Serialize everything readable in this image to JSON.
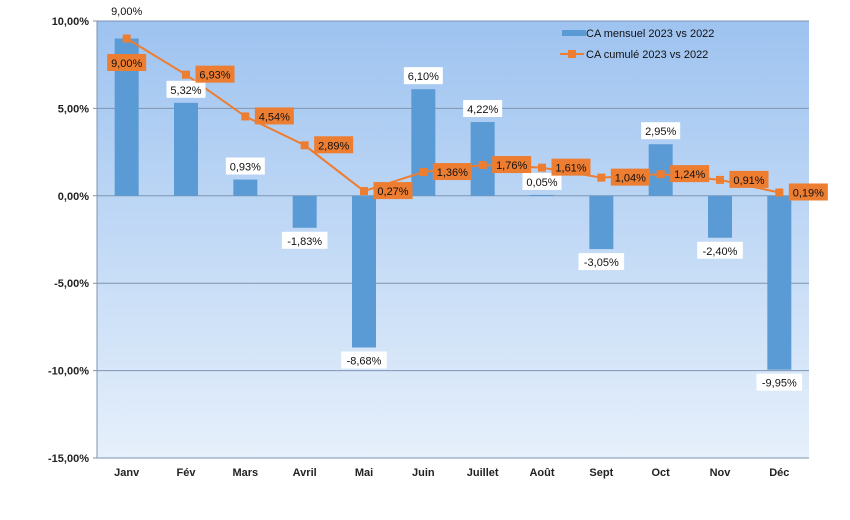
{
  "chart_data": {
    "type": "bar+line",
    "categories": [
      "Janv",
      "Fév",
      "Mars",
      "Avril",
      "Mai",
      "Juin",
      "Juillet",
      "Août",
      "Sept",
      "Oct",
      "Nov",
      "Déc"
    ],
    "series": [
      {
        "name": "CA mensuel 2023 vs 2022",
        "type": "bar",
        "color": "#5b9bd5",
        "values": [
          9.0,
          5.32,
          0.93,
          -1.83,
          -8.68,
          6.1,
          4.22,
          0.05,
          -3.05,
          2.95,
          -2.4,
          -9.95
        ],
        "labels": [
          "9,00%",
          "5,32%",
          "0,93%",
          "-1,83%",
          "-8,68%",
          "6,10%",
          "4,22%",
          "0,05%",
          "-3,05%",
          "2,95%",
          "-2,40%",
          "-9,95%"
        ]
      },
      {
        "name": "CA cumulé 2023 vs 2022",
        "type": "line",
        "color": "#ed7d31",
        "values": [
          9.0,
          6.93,
          4.54,
          2.89,
          0.27,
          1.36,
          1.76,
          1.61,
          1.04,
          1.24,
          0.91,
          0.19
        ],
        "labels": [
          "9,00%",
          "6,93%",
          "4,54%",
          "2,89%",
          "0,27%",
          "1,36%",
          "1,76%",
          "1,61%",
          "1,04%",
          "1,24%",
          "0,91%",
          "0,19%"
        ]
      }
    ],
    "ylim": [
      -15,
      10
    ],
    "yticks": [
      10,
      5,
      0,
      -5,
      -10,
      -15
    ],
    "ytick_labels": [
      "10,00%",
      "5,00%",
      "0,00%",
      "-5,00%",
      "-10,00%",
      "-15,00%"
    ],
    "grid": true,
    "legend_placement": "top-right"
  }
}
